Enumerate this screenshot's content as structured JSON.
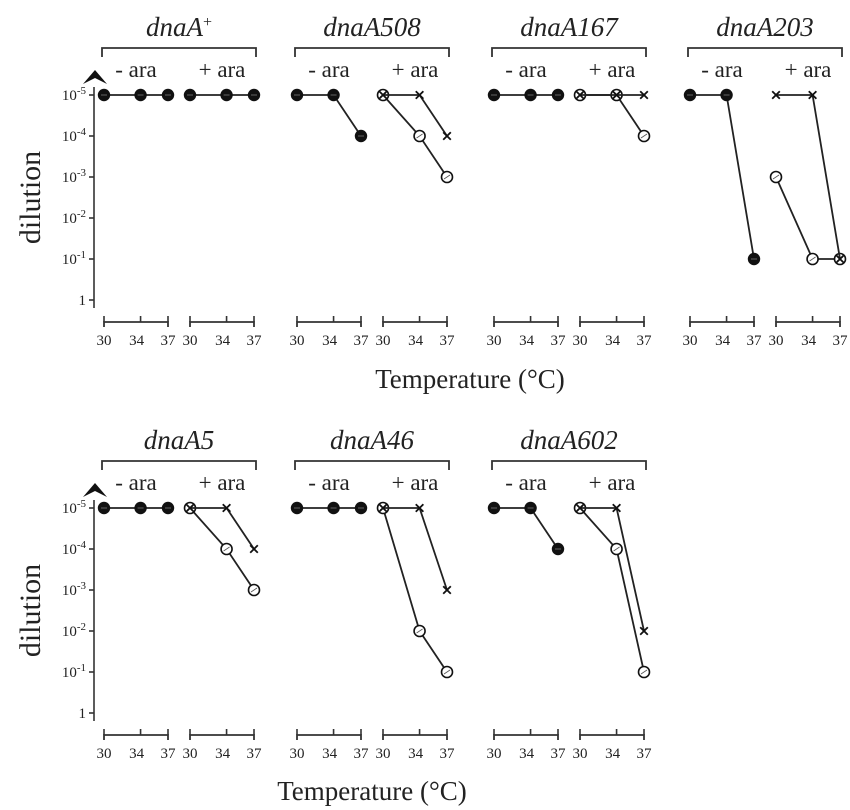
{
  "colors": {
    "ink": "#222222",
    "background": "#ffffff"
  },
  "chart_data": {
    "type": "line",
    "ylabel": "dilution",
    "xlabel": "Temperature (°C)",
    "y_tick_labels": [
      "10-5",
      "10-4",
      "10-3",
      "10-2",
      "10-1",
      "1"
    ],
    "y_scale": "log",
    "x_tick_labels": [
      "30",
      "34",
      "37"
    ],
    "condition_labels": [
      "- ara",
      "+ ara"
    ],
    "panels": [
      {
        "title": "dnaA",
        "title_sup": "+",
        "minus_ara": {
          "x": [
            30,
            34,
            37
          ],
          "filled": [
            5,
            5,
            5
          ]
        },
        "plus_ara": {
          "x": [
            30,
            34,
            37
          ],
          "filled": [
            5,
            5,
            5
          ]
        }
      },
      {
        "title": "dnaA508",
        "title_sup": "",
        "minus_ara": {
          "x": [
            30,
            34,
            37
          ],
          "filled": [
            5,
            5,
            4
          ]
        },
        "plus_ara": {
          "x": [
            30,
            34,
            37
          ],
          "open": [
            5,
            4,
            3
          ],
          "cross": [
            5,
            5,
            4
          ]
        }
      },
      {
        "title": "dnaA167",
        "title_sup": "",
        "minus_ara": {
          "x": [
            30,
            34,
            37
          ],
          "filled": [
            5,
            5,
            5
          ]
        },
        "plus_ara": {
          "x": [
            30,
            34,
            37
          ],
          "open": [
            5,
            5,
            4
          ],
          "cross": [
            5,
            5,
            5
          ]
        }
      },
      {
        "title": "dnaA203",
        "title_sup": "",
        "minus_ara": {
          "x": [
            30,
            34,
            37
          ],
          "filled": [
            5,
            5,
            1
          ]
        },
        "plus_ara": {
          "x": [
            30,
            34,
            37
          ],
          "open": [
            3,
            1,
            1
          ],
          "cross": [
            5,
            5,
            1
          ]
        }
      },
      {
        "title": "dnaA5",
        "title_sup": "",
        "minus_ara": {
          "x": [
            30,
            34,
            37
          ],
          "filled": [
            5,
            5,
            5
          ]
        },
        "plus_ara": {
          "x": [
            30,
            34,
            37
          ],
          "open": [
            5,
            4,
            3
          ],
          "cross": [
            5,
            5,
            4
          ]
        }
      },
      {
        "title": "dnaA46",
        "title_sup": "",
        "minus_ara": {
          "x": [
            30,
            34,
            37
          ],
          "filled": [
            5,
            5,
            5
          ]
        },
        "plus_ara": {
          "x": [
            30,
            34,
            37
          ],
          "open": [
            5,
            2,
            1
          ],
          "cross": [
            5,
            5,
            3
          ]
        }
      },
      {
        "title": "dnaA602",
        "title_sup": "",
        "minus_ara": {
          "x": [
            30,
            34,
            37
          ],
          "filled": [
            5,
            5,
            4
          ]
        },
        "plus_ara": {
          "x": [
            30,
            34,
            37
          ],
          "open": [
            5,
            4,
            1
          ],
          "cross": [
            5,
            5,
            2
          ]
        }
      }
    ]
  }
}
